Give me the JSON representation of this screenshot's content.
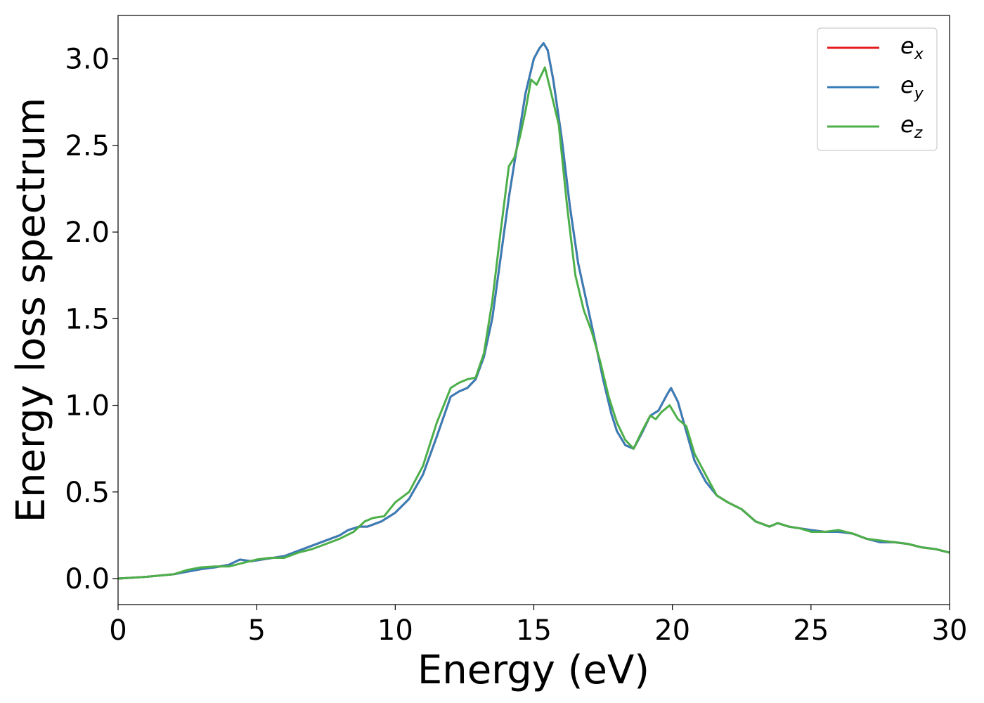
{
  "chart_data": {
    "type": "line",
    "title": "",
    "xlabel": "Energy (eV)",
    "ylabel": "Energy loss spectrum",
    "xlim": [
      0,
      30
    ],
    "ylim": [
      -0.15,
      3.25
    ],
    "xticks": [
      0,
      5,
      10,
      15,
      20,
      25,
      30
    ],
    "xtick_labels": [
      "0",
      "5",
      "10",
      "15",
      "20",
      "25",
      "30"
    ],
    "yticks": [
      0.0,
      0.5,
      1.0,
      1.5,
      2.0,
      2.5,
      3.0
    ],
    "ytick_labels": [
      "0.0",
      "0.5",
      "1.0",
      "1.5",
      "2.0",
      "2.5",
      "3.0"
    ],
    "grid": false,
    "legend_position": "top-right",
    "series": [
      {
        "name": "e_x",
        "legend_base": "e",
        "legend_sub": "x",
        "color": "#e41a1c",
        "x": [
          0,
          1,
          2,
          2.5,
          3,
          3.5,
          4,
          4.4,
          4.8,
          5.2,
          5.6,
          6,
          6.5,
          7,
          7.5,
          8,
          8.3,
          8.7,
          9,
          9.5,
          10,
          10.5,
          11,
          11.5,
          12,
          12.3,
          12.6,
          12.9,
          13.2,
          13.5,
          13.8,
          14.1,
          14.4,
          14.7,
          15.0,
          15.2,
          15.35,
          15.5,
          15.7,
          16.0,
          16.3,
          16.6,
          16.9,
          17.2,
          17.5,
          17.8,
          18.0,
          18.3,
          18.6,
          18.9,
          19.2,
          19.5,
          19.8,
          19.95,
          20.2,
          20.5,
          20.8,
          21.2,
          21.6,
          22,
          22.5,
          23,
          23.5,
          23.8,
          24.2,
          24.6,
          25,
          25.5,
          26,
          26.5,
          27,
          27.5,
          28,
          28.5,
          29,
          29.5,
          30
        ],
        "y": [
          0.0,
          0.01,
          0.025,
          0.04,
          0.055,
          0.065,
          0.08,
          0.11,
          0.1,
          0.11,
          0.12,
          0.13,
          0.16,
          0.19,
          0.22,
          0.25,
          0.28,
          0.3,
          0.3,
          0.33,
          0.38,
          0.46,
          0.6,
          0.82,
          1.05,
          1.08,
          1.1,
          1.15,
          1.28,
          1.5,
          1.85,
          2.2,
          2.5,
          2.8,
          3.0,
          3.06,
          3.09,
          3.05,
          2.88,
          2.55,
          2.15,
          1.82,
          1.6,
          1.38,
          1.15,
          0.95,
          0.85,
          0.77,
          0.75,
          0.84,
          0.94,
          0.97,
          1.06,
          1.1,
          1.02,
          0.85,
          0.68,
          0.56,
          0.48,
          0.44,
          0.4,
          0.33,
          0.3,
          0.32,
          0.3,
          0.29,
          0.28,
          0.27,
          0.27,
          0.26,
          0.23,
          0.21,
          0.21,
          0.2,
          0.18,
          0.17,
          0.15
        ]
      },
      {
        "name": "e_y",
        "legend_base": "e",
        "legend_sub": "y",
        "color": "#377eb8",
        "x": [
          0,
          1,
          2,
          2.5,
          3,
          3.5,
          4,
          4.4,
          4.8,
          5.2,
          5.6,
          6,
          6.5,
          7,
          7.5,
          8,
          8.3,
          8.7,
          9,
          9.5,
          10,
          10.5,
          11,
          11.5,
          12,
          12.3,
          12.6,
          12.9,
          13.2,
          13.5,
          13.8,
          14.1,
          14.4,
          14.7,
          15.0,
          15.2,
          15.35,
          15.5,
          15.7,
          16.0,
          16.3,
          16.6,
          16.9,
          17.2,
          17.5,
          17.8,
          18.0,
          18.3,
          18.6,
          18.9,
          19.2,
          19.5,
          19.8,
          19.95,
          20.2,
          20.5,
          20.8,
          21.2,
          21.6,
          22,
          22.5,
          23,
          23.5,
          23.8,
          24.2,
          24.6,
          25,
          25.5,
          26,
          26.5,
          27,
          27.5,
          28,
          28.5,
          29,
          29.5,
          30
        ],
        "y": [
          0.0,
          0.01,
          0.025,
          0.04,
          0.055,
          0.065,
          0.08,
          0.11,
          0.1,
          0.11,
          0.12,
          0.13,
          0.16,
          0.19,
          0.22,
          0.25,
          0.28,
          0.3,
          0.3,
          0.33,
          0.38,
          0.46,
          0.6,
          0.82,
          1.05,
          1.08,
          1.1,
          1.15,
          1.28,
          1.5,
          1.85,
          2.2,
          2.5,
          2.8,
          3.0,
          3.06,
          3.09,
          3.05,
          2.88,
          2.55,
          2.15,
          1.82,
          1.6,
          1.38,
          1.15,
          0.95,
          0.85,
          0.77,
          0.75,
          0.84,
          0.94,
          0.97,
          1.06,
          1.1,
          1.02,
          0.85,
          0.68,
          0.56,
          0.48,
          0.44,
          0.4,
          0.33,
          0.3,
          0.32,
          0.3,
          0.29,
          0.28,
          0.27,
          0.27,
          0.26,
          0.23,
          0.21,
          0.21,
          0.2,
          0.18,
          0.17,
          0.15
        ]
      },
      {
        "name": "e_z",
        "legend_base": "e",
        "legend_sub": "z",
        "color": "#4daf4a",
        "x": [
          0,
          1,
          2,
          2.5,
          3,
          3.5,
          4,
          4.5,
          5,
          5.5,
          6,
          6.5,
          7,
          7.5,
          8,
          8.5,
          8.9,
          9.2,
          9.6,
          10,
          10.5,
          11,
          11.5,
          12,
          12.3,
          12.6,
          12.9,
          13.2,
          13.5,
          13.8,
          14.1,
          14.3,
          14.5,
          14.7,
          14.9,
          15.1,
          15.25,
          15.4,
          15.6,
          15.9,
          16.2,
          16.5,
          16.8,
          17.1,
          17.4,
          17.7,
          18.0,
          18.3,
          18.6,
          18.9,
          19.2,
          19.4,
          19.6,
          19.9,
          20.2,
          20.5,
          20.8,
          21.2,
          21.6,
          22,
          22.5,
          23,
          23.5,
          23.8,
          24.2,
          24.6,
          25,
          25.5,
          26,
          26.5,
          27,
          27.5,
          28,
          28.5,
          29,
          29.5,
          30
        ],
        "y": [
          0.0,
          0.01,
          0.025,
          0.05,
          0.065,
          0.07,
          0.07,
          0.09,
          0.11,
          0.12,
          0.12,
          0.15,
          0.17,
          0.2,
          0.23,
          0.27,
          0.33,
          0.35,
          0.36,
          0.44,
          0.5,
          0.65,
          0.9,
          1.1,
          1.13,
          1.15,
          1.16,
          1.3,
          1.6,
          2.0,
          2.38,
          2.43,
          2.55,
          2.7,
          2.88,
          2.85,
          2.9,
          2.95,
          2.82,
          2.62,
          2.15,
          1.75,
          1.55,
          1.42,
          1.25,
          1.05,
          0.9,
          0.8,
          0.75,
          0.85,
          0.94,
          0.92,
          0.96,
          1.0,
          0.92,
          0.88,
          0.72,
          0.6,
          0.48,
          0.44,
          0.4,
          0.33,
          0.3,
          0.32,
          0.3,
          0.29,
          0.27,
          0.27,
          0.28,
          0.26,
          0.23,
          0.22,
          0.21,
          0.2,
          0.18,
          0.17,
          0.15
        ]
      }
    ]
  }
}
